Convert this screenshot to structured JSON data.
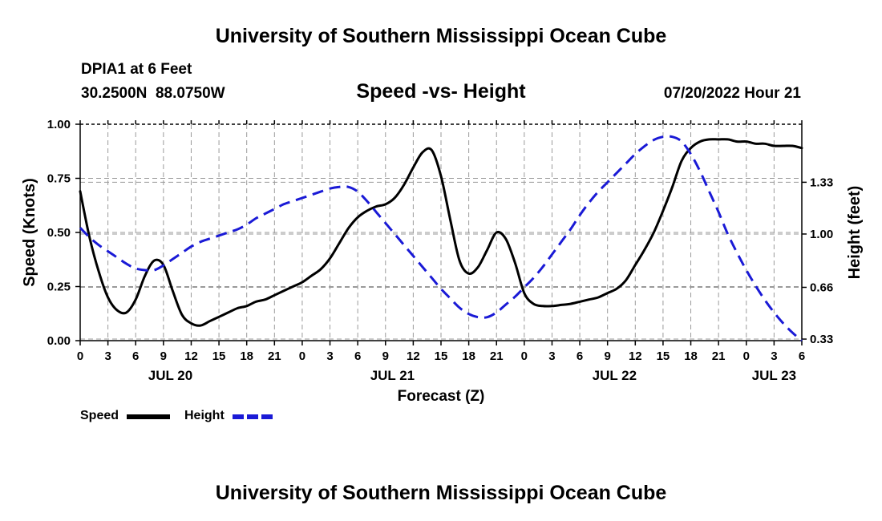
{
  "page": {
    "title": "University of Southern Mississippi Ocean Cube",
    "footer_title": "University of Southern Mississippi Ocean Cube",
    "station": "DPIA1 at 6 Feet",
    "coords": "30.2500N  88.0750W",
    "date_hour": "07/20/2022 Hour 21"
  },
  "legend": {
    "items": [
      {
        "label": "Speed",
        "color": "#000000",
        "dashed": false
      },
      {
        "label": "Height",
        "color": "#1a1ad6",
        "dashed": true
      }
    ]
  },
  "chart_data": {
    "type": "line",
    "title": "Speed -vs- Height",
    "xlabel": "Forecast (Z)",
    "ylabel": "Speed (Knots)",
    "y2label": "Height (feet)",
    "x_hours_range": [
      0,
      78
    ],
    "x_tick_hours": [
      0,
      3,
      6,
      9,
      12,
      15,
      18,
      21,
      24,
      27,
      30,
      33,
      36,
      39,
      42,
      45,
      48,
      51,
      54,
      57,
      60,
      63,
      66,
      69,
      72,
      75,
      78
    ],
    "x_tick_labels": [
      "0",
      "3",
      "6",
      "9",
      "12",
      "15",
      "18",
      "21",
      "0",
      "3",
      "6",
      "9",
      "12",
      "15",
      "18",
      "21",
      "0",
      "3",
      "6",
      "9",
      "12",
      "15",
      "18",
      "21",
      "0",
      "3",
      "6"
    ],
    "day_labels": [
      {
        "label": "JUL 20",
        "hour": 9.75
      },
      {
        "label": "JUL 21",
        "hour": 33.75
      },
      {
        "label": "JUL 22",
        "hour": 57.75
      },
      {
        "label": "JUL 23",
        "hour": 75
      }
    ],
    "ylim": [
      0,
      1.0
    ],
    "y_ticks": [
      0.0,
      0.25,
      0.5,
      0.75,
      1.0
    ],
    "y_tick_labels": [
      "0.00",
      "0.25",
      "0.50",
      "0.75",
      "1.00"
    ],
    "y2lim": [
      0.32,
      1.7
    ],
    "y2_ticks": [
      0.33,
      0.66,
      1.0,
      1.33
    ],
    "y2_tick_labels": [
      "0.33",
      "0.66",
      "1.00",
      "1.33"
    ],
    "series": [
      {
        "name": "Speed",
        "axis": "left",
        "unit": "Knots",
        "x": [
          0,
          1,
          2,
          3,
          4,
          5,
          6,
          7,
          8,
          9,
          10,
          11,
          12,
          13,
          14,
          15,
          16,
          17,
          18,
          19,
          20,
          21,
          22,
          23,
          24,
          25,
          26,
          27,
          28,
          29,
          30,
          31,
          32,
          33,
          34,
          35,
          36,
          37,
          38,
          39,
          40,
          41,
          42,
          43,
          44,
          45,
          46,
          47,
          48,
          49,
          50,
          51,
          52,
          53,
          54,
          55,
          56,
          57,
          58,
          59,
          60,
          61,
          62,
          63,
          64,
          65,
          66,
          67,
          68,
          69,
          70,
          71,
          72,
          73,
          74,
          75,
          76,
          77,
          78
        ],
        "values": [
          0.69,
          0.48,
          0.32,
          0.2,
          0.14,
          0.13,
          0.19,
          0.3,
          0.37,
          0.35,
          0.23,
          0.12,
          0.08,
          0.07,
          0.09,
          0.11,
          0.13,
          0.15,
          0.16,
          0.18,
          0.19,
          0.21,
          0.23,
          0.25,
          0.27,
          0.3,
          0.33,
          0.38,
          0.45,
          0.52,
          0.57,
          0.6,
          0.62,
          0.63,
          0.66,
          0.72,
          0.8,
          0.87,
          0.88,
          0.76,
          0.56,
          0.37,
          0.31,
          0.34,
          0.42,
          0.5,
          0.47,
          0.36,
          0.22,
          0.17,
          0.16,
          0.16,
          0.165,
          0.17,
          0.18,
          0.19,
          0.2,
          0.22,
          0.24,
          0.28,
          0.35,
          0.42,
          0.5,
          0.6,
          0.71,
          0.83,
          0.89,
          0.92,
          0.93,
          0.93,
          0.93,
          0.92,
          0.92,
          0.91,
          0.91,
          0.9,
          0.9,
          0.9,
          0.89
        ]
      },
      {
        "name": "Height",
        "axis": "right",
        "unit": "feet",
        "x": [
          0,
          1,
          2,
          3,
          4,
          5,
          6,
          7,
          8,
          9,
          10,
          11,
          12,
          13,
          14,
          15,
          16,
          17,
          18,
          19,
          20,
          21,
          22,
          23,
          24,
          25,
          26,
          27,
          28,
          29,
          30,
          31,
          32,
          33,
          34,
          35,
          36,
          37,
          38,
          39,
          40,
          41,
          42,
          43,
          44,
          45,
          46,
          47,
          48,
          49,
          50,
          51,
          52,
          53,
          54,
          55,
          56,
          57,
          58,
          59,
          60,
          61,
          62,
          63,
          64,
          65,
          66,
          67,
          68,
          69,
          70,
          71,
          72,
          73,
          74,
          75,
          76,
          77,
          78
        ],
        "values": [
          1.04,
          0.98,
          0.93,
          0.89,
          0.85,
          0.81,
          0.78,
          0.77,
          0.77,
          0.8,
          0.84,
          0.88,
          0.92,
          0.95,
          0.97,
          0.99,
          1.01,
          1.03,
          1.06,
          1.1,
          1.13,
          1.16,
          1.19,
          1.21,
          1.23,
          1.25,
          1.27,
          1.29,
          1.3,
          1.3,
          1.27,
          1.21,
          1.14,
          1.07,
          1.0,
          0.93,
          0.86,
          0.79,
          0.72,
          0.65,
          0.59,
          0.53,
          0.49,
          0.47,
          0.47,
          0.5,
          0.55,
          0.6,
          0.66,
          0.72,
          0.79,
          0.87,
          0.95,
          1.03,
          1.12,
          1.2,
          1.27,
          1.33,
          1.39,
          1.45,
          1.51,
          1.56,
          1.6,
          1.62,
          1.62,
          1.59,
          1.51,
          1.4,
          1.27,
          1.14,
          1.0,
          0.88,
          0.77,
          0.67,
          0.58,
          0.5,
          0.43,
          0.37,
          0.32
        ]
      }
    ]
  }
}
